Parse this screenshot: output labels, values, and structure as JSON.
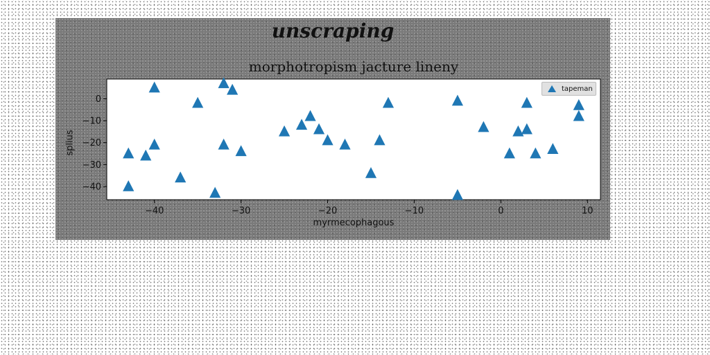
{
  "figure": {
    "suptitle": "unscraping"
  },
  "chart_data": {
    "type": "scatter",
    "title": "morphotropism jacture lineny",
    "xlabel": "myrmecophagous",
    "ylabel": "splius",
    "xlim": [
      -45.5,
      11.5
    ],
    "ylim": [
      -46,
      9
    ],
    "xticks": [
      -40,
      -30,
      -20,
      -10,
      0,
      10
    ],
    "yticks": [
      0,
      -10,
      -20,
      -30,
      -40
    ],
    "grid": false,
    "legend_position": "top-right",
    "marker": "triangle-up",
    "color": "#1f77b4",
    "series": [
      {
        "name": "tapeman",
        "x": [
          -43,
          -43,
          -41,
          -40,
          -40,
          -37,
          -35,
          -33,
          -32,
          -32,
          -31,
          -30,
          -25,
          -23,
          -22,
          -21,
          -20,
          -18,
          -15,
          -14,
          -13,
          -5,
          -5,
          -2,
          1,
          2,
          3,
          3,
          4,
          6,
          9,
          9
        ],
        "y": [
          -25,
          -40,
          -26,
          5,
          -21,
          -36,
          -2,
          -43,
          7,
          -21,
          4,
          -24,
          -15,
          -12,
          -8,
          -14,
          -19,
          -21,
          -34,
          -19,
          -2,
          -1,
          -44,
          -13,
          -25,
          -15,
          -2,
          -14,
          -25,
          -23,
          -3,
          -8
        ]
      }
    ]
  }
}
